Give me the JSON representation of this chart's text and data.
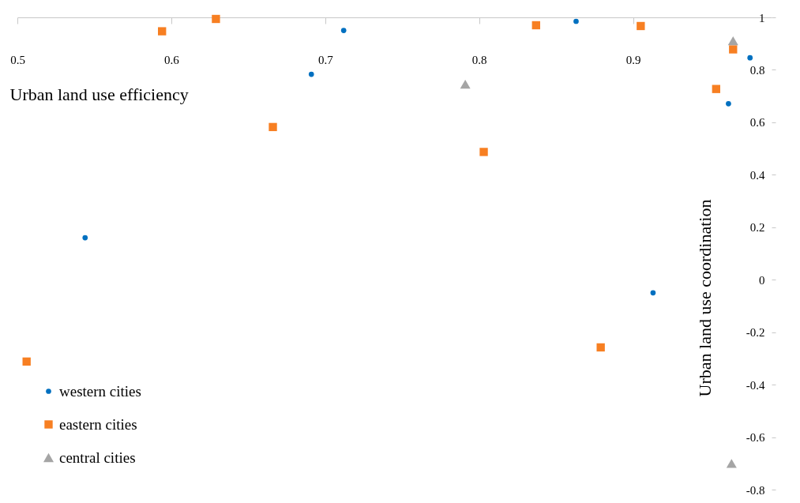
{
  "chart_data": {
    "type": "scatter",
    "xlabel": "Urban land use efficiency",
    "ylabel": "Urban land use coordination",
    "xlim": [
      0.5,
      0.99
    ],
    "xticks": [
      0.5,
      0.6,
      0.7,
      0.8,
      0.9
    ],
    "ylim": [
      -0.8,
      1
    ],
    "yticks": [
      -0.8,
      -0.6,
      -0.4,
      -0.2,
      0,
      0.2,
      0.4,
      0.6,
      0.8,
      1
    ],
    "grid": false,
    "legend": "bottom left",
    "series": [
      {
        "name": "western cities",
        "color": "#0070c0",
        "marker": "circle",
        "x": [
          0.863,
          0.712,
          0.691,
          0.976,
          0.962,
          0.544,
          0.913
        ],
        "values": [
          0.985,
          0.95,
          0.783,
          0.846,
          0.671,
          0.16,
          -0.05
        ]
      },
      {
        "name": "eastern cities",
        "color": "#f77f22",
        "marker": "square",
        "x": [
          0.594,
          0.629,
          0.837,
          0.905,
          0.965,
          0.954,
          0.666,
          0.803,
          0.879,
          0.506
        ],
        "values": [
          0.947,
          0.994,
          0.97,
          0.967,
          0.878,
          0.727,
          0.582,
          0.487,
          -0.258,
          -0.312
        ]
      },
      {
        "name": "central cities",
        "color": "#a5a5a5",
        "marker": "triangle",
        "x": [
          0.791,
          0.965,
          0.964
        ],
        "values": [
          0.745,
          0.911,
          -0.7
        ]
      }
    ]
  }
}
